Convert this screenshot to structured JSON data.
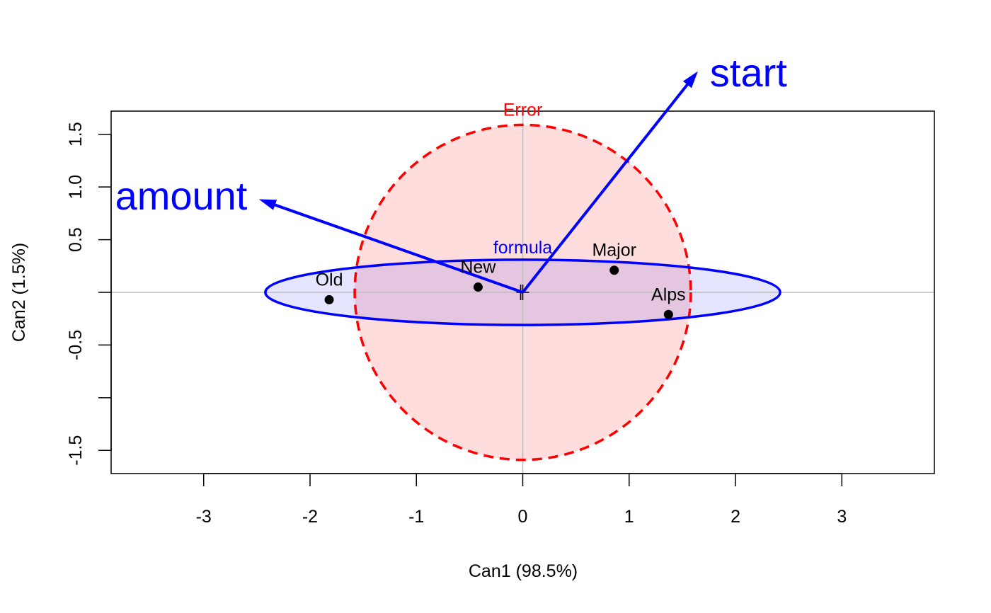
{
  "chart_data": {
    "type": "scatter",
    "xlabel": "Can1 (98.5%)",
    "ylabel": "Can2 (1.5%)",
    "xlim": [
      -3.87,
      3.87
    ],
    "ylim": [
      -1.72,
      1.72
    ],
    "x_ticks": [
      -3,
      -2,
      -1,
      0,
      1,
      2,
      3
    ],
    "x_tick_labels": [
      "-3",
      "-2",
      "-1",
      "0",
      "1",
      "2",
      "3"
    ],
    "y_ticks": [
      -1.5,
      -1.0,
      -0.5,
      0.0,
      0.5,
      1.0,
      1.5
    ],
    "y_tick_labels": [
      "-1.5",
      "",
      "-0.5",
      "",
      "0.5",
      "1.0",
      "1.5"
    ],
    "reference_lines": {
      "x": 0,
      "y": 0,
      "color": "#bebebe"
    },
    "centroid_marker": {
      "x": 0,
      "y": 0,
      "symbol": "+"
    },
    "points": [
      {
        "label": "Old",
        "x": -1.82,
        "y": -0.07
      },
      {
        "label": "New",
        "x": -0.42,
        "y": 0.05
      },
      {
        "label": "Major",
        "x": 0.86,
        "y": 0.21
      },
      {
        "label": "Alps",
        "x": 1.37,
        "y": -0.21
      }
    ],
    "ellipses": [
      {
        "label": "Error",
        "cx": 0,
        "cy": 0,
        "rx": 1.58,
        "ry": 1.59,
        "stroke": "#ff0000",
        "fill": "#ff000022",
        "dashed": true
      },
      {
        "label": "formula",
        "cx": 0,
        "cy": 0,
        "rx": 2.42,
        "ry": 0.31,
        "stroke": "#0000ff",
        "fill": "#0000ff1a",
        "dashed": false
      }
    ],
    "vectors": [
      {
        "label": "amount",
        "x": -2.47,
        "y": 0.88,
        "color": "#0000ff"
      },
      {
        "label": "start",
        "x": 1.64,
        "y": 2.09,
        "color": "#0000ff"
      }
    ]
  }
}
